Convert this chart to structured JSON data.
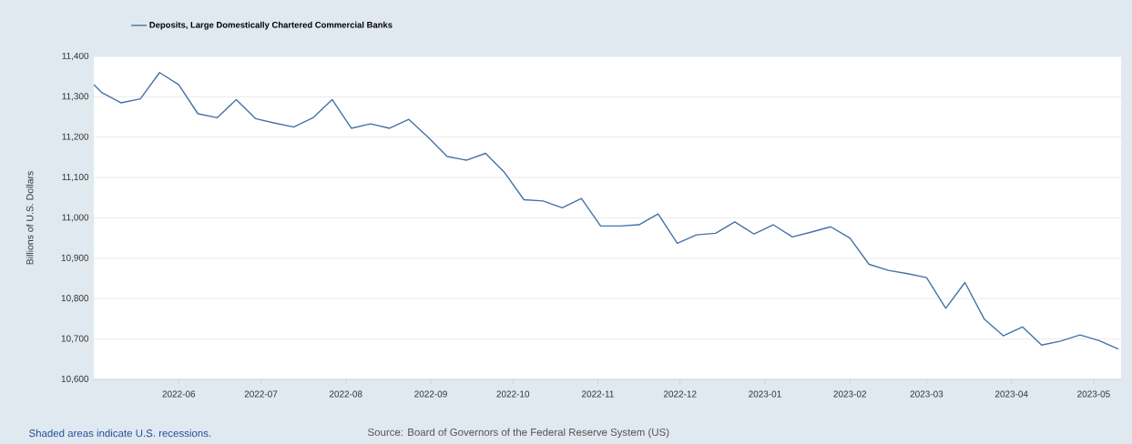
{
  "chart_data": {
    "type": "line",
    "ylabel": "Billions of U.S. Dollars",
    "x": [
      "2022-05-01",
      "2022-05-04",
      "2022-05-11",
      "2022-05-18",
      "2022-05-25",
      "2022-06-01",
      "2022-06-08",
      "2022-06-15",
      "2022-06-22",
      "2022-06-29",
      "2022-07-06",
      "2022-07-13",
      "2022-07-20",
      "2022-07-27",
      "2022-08-03",
      "2022-08-10",
      "2022-08-17",
      "2022-08-24",
      "2022-08-31",
      "2022-09-07",
      "2022-09-14",
      "2022-09-21",
      "2022-09-28",
      "2022-10-05",
      "2022-10-12",
      "2022-10-19",
      "2022-10-26",
      "2022-11-02",
      "2022-11-09",
      "2022-11-16",
      "2022-11-23",
      "2022-11-30",
      "2022-12-07",
      "2022-12-14",
      "2022-12-21",
      "2022-12-28",
      "2023-01-04",
      "2023-01-11",
      "2023-01-18",
      "2023-01-25",
      "2023-02-01",
      "2023-02-08",
      "2023-02-15",
      "2023-02-22",
      "2023-03-01",
      "2023-03-08",
      "2023-03-15",
      "2023-03-22",
      "2023-03-29",
      "2023-04-05",
      "2023-04-12",
      "2023-04-19",
      "2023-04-26",
      "2023-05-03",
      "2023-05-10"
    ],
    "series": [
      {
        "name": "Deposits, Large Domestically Chartered Commercial Banks",
        "color": "#4572a7",
        "values": [
          11330,
          11310,
          11285,
          11295,
          11360,
          11330,
          11258,
          11248,
          11293,
          11246,
          11235,
          11225,
          11248,
          11293,
          11222,
          11233,
          11222,
          11244,
          11200,
          11152,
          11143,
          11160,
          11112,
          11045,
          11042,
          11025,
          11048,
          10980,
          10980,
          10983,
          11010,
          10937,
          10958,
          10962,
          10990,
          10960,
          10983,
          10953,
          10965,
          10978,
          10950,
          10885,
          10870,
          10862,
          10852,
          10776,
          10840,
          10750,
          10708,
          10730,
          10685,
          10695,
          10710,
          10696,
          10675
        ]
      }
    ],
    "xlim": [
      "2022-05-01",
      "2023-05-11"
    ],
    "xticks": [
      "2022-06",
      "2022-07",
      "2022-08",
      "2022-09",
      "2022-10",
      "2022-11",
      "2022-12",
      "2023-01",
      "2023-02",
      "2023-03",
      "2023-04",
      "2023-05"
    ],
    "ylim": [
      10600,
      11400
    ],
    "yticks": [
      {
        "value": 10600,
        "label": "10,600"
      },
      {
        "value": 10700,
        "label": "10,700"
      },
      {
        "value": 10800,
        "label": "10,800"
      },
      {
        "value": 10900,
        "label": "10,900"
      },
      {
        "value": 11000,
        "label": "11,000"
      },
      {
        "value": 11100,
        "label": "11,100"
      },
      {
        "value": 11200,
        "label": "11,200"
      },
      {
        "value": 11300,
        "label": "11,300"
      },
      {
        "value": 11400,
        "label": "11,400"
      }
    ],
    "grid": "y",
    "legend": "top left",
    "line_style": "solid",
    "marker": "none",
    "annotations": [
      "Shaded areas indicate U.S. recessions.",
      "Source: Board of Governors of the Federal Reserve System (US)"
    ]
  }
}
